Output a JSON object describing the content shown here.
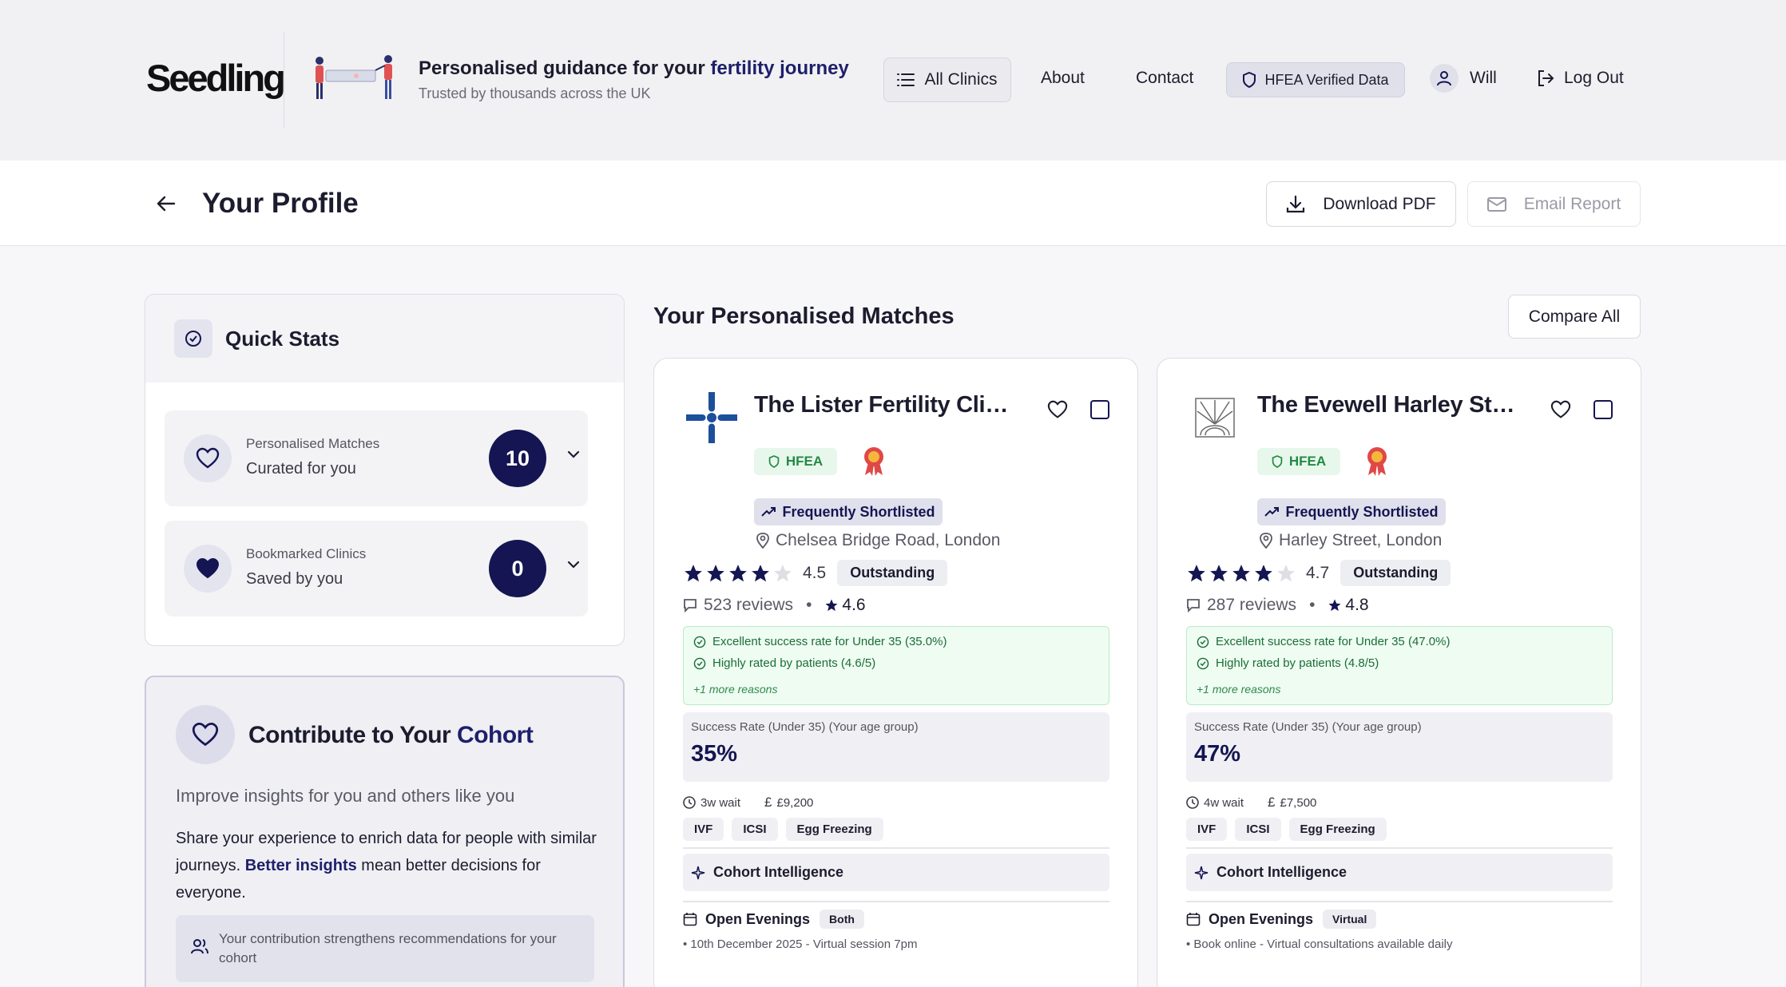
{
  "header": {
    "logo": "Seedling",
    "tagline_prefix": "Personalised guidance for your ",
    "tagline_accent": "fertility journey",
    "tagline_sub": "Trusted by thousands across the UK",
    "nav": {
      "all_clinics": "All Clinics",
      "about": "About",
      "contact": "Contact",
      "hfea_verified": "HFEA Verified Data",
      "user_name": "Will",
      "logout": "Log Out"
    }
  },
  "subheader": {
    "title": "Your Profile",
    "download_pdf": "Download PDF",
    "email_report": "Email Report"
  },
  "quick_stats": {
    "title": "Quick Stats",
    "items": [
      {
        "label": "Personalised Matches",
        "sub": "Curated for you",
        "count": "10"
      },
      {
        "label": "Bookmarked Clinics",
        "sub": "Saved by you",
        "count": "0"
      }
    ]
  },
  "cohort": {
    "title_prefix": "Contribute to Your ",
    "title_accent": "Cohort",
    "subtitle": "Improve insights for you and others like you",
    "body_1": "Share your experience to enrich data for people with similar journeys. ",
    "body_accent": "Better insights",
    "body_2": " mean better decisions for everyone.",
    "note": "Your contribution strengthens recommendations for your cohort"
  },
  "matches": {
    "title": "Your Personalised Matches",
    "compare_all": "Compare All",
    "clinics": [
      {
        "name": "The Lister Fertility Clinic",
        "hfea": "HFEA",
        "shortlisted": "Frequently Shortlisted",
        "location": "Chelsea Bridge Road, London",
        "rating": 4.5,
        "rating_text": "4.5",
        "rating_label": "Outstanding",
        "reviews": "523 reviews",
        "review_score": "4.6",
        "reasons": [
          "Excellent success rate for Under 35 (35.0%)",
          "Highly rated by patients (4.6/5)"
        ],
        "more_reasons": "+1 more reasons",
        "success_label": "Success Rate (Under 35)  (Your age group)",
        "success_value": "35%",
        "wait": "3w wait",
        "price": "£9,200",
        "tags": [
          "IVF",
          "ICSI",
          "Egg Freezing"
        ],
        "cohort_intel": "Cohort Intelligence",
        "open_evenings": "Open Evenings",
        "open_tag": "Both",
        "open_detail": "• 10th December 2025 - Virtual session 7pm"
      },
      {
        "name": "The Evewell Harley Street",
        "hfea": "HFEA",
        "shortlisted": "Frequently Shortlisted",
        "location": "Harley Street, London",
        "rating": 4.7,
        "rating_text": "4.7",
        "rating_label": "Outstanding",
        "reviews": "287 reviews",
        "review_score": "4.8",
        "reasons": [
          "Excellent success rate for Under 35 (47.0%)",
          "Highly rated by patients (4.8/5)"
        ],
        "more_reasons": "+1 more reasons",
        "success_label": "Success Rate (Under 35)  (Your age group)",
        "success_value": "47%",
        "wait": "4w wait",
        "price": "£7,500",
        "tags": [
          "IVF",
          "ICSI",
          "Egg Freezing"
        ],
        "cohort_intel": "Cohort Intelligence",
        "open_evenings": "Open Evenings",
        "open_tag": "Virtual",
        "open_detail": "• Book online - Virtual consultations available daily"
      }
    ]
  },
  "colors": {
    "navy": "#141552",
    "accent": "#1e1f6b",
    "green": "#228a45"
  }
}
